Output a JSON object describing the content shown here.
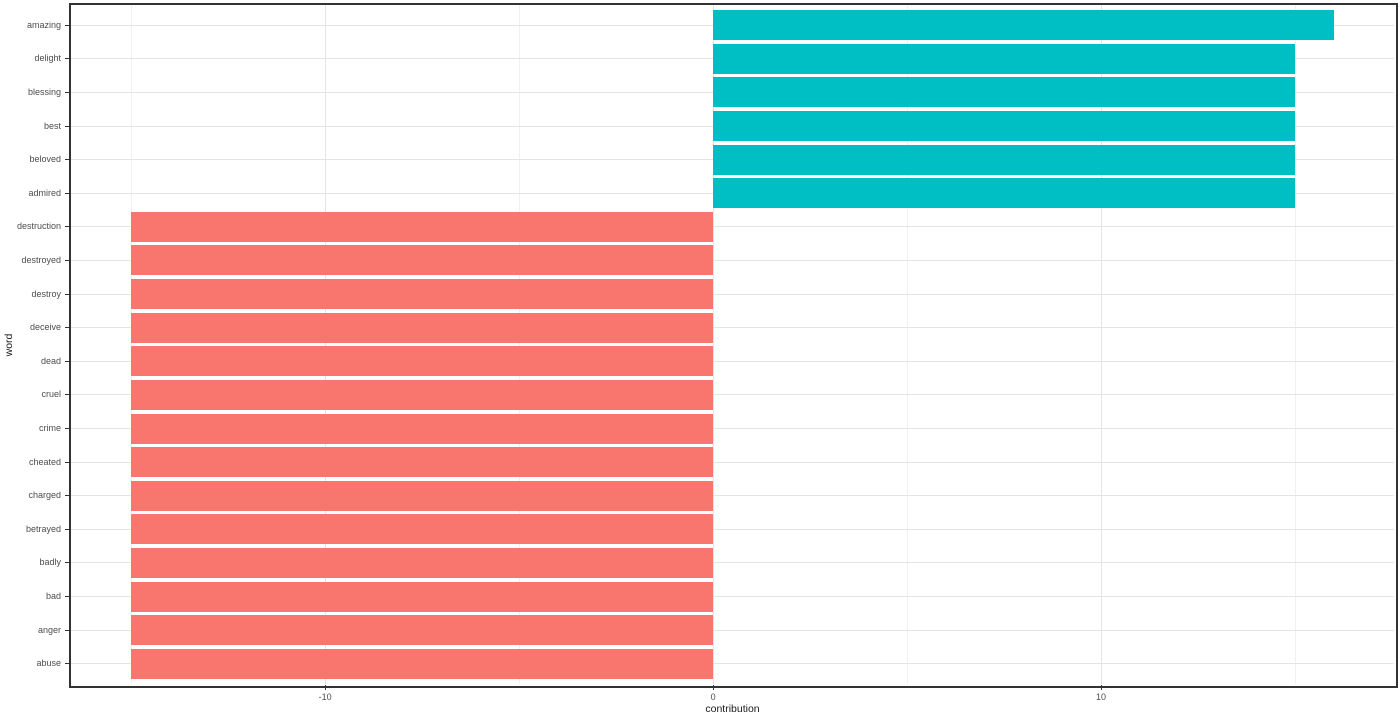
{
  "chart_data": {
    "type": "bar",
    "orientation": "horizontal",
    "title": "",
    "xlabel": "contribution",
    "ylabel": "word",
    "categories": [
      "amazing",
      "delight",
      "blessing",
      "best",
      "beloved",
      "admired",
      "destruction",
      "destroyed",
      "destroy",
      "deceive",
      "dead",
      "cruel",
      "crime",
      "cheated",
      "charged",
      "betrayed",
      "badly",
      "bad",
      "anger",
      "abuse"
    ],
    "values": [
      16,
      15,
      15,
      15,
      15,
      15,
      -15,
      -15,
      -15,
      -15,
      -15,
      -15,
      -15,
      -15,
      -15,
      -15,
      -15,
      -15,
      -15,
      -15
    ],
    "xlim": [
      -16.55,
      17.55
    ],
    "x_ticks": [
      {
        "value": -10,
        "label": "-10"
      },
      {
        "value": 0,
        "label": "0"
      },
      {
        "value": 10,
        "label": "10"
      }
    ],
    "x_minor_ticks": [
      -15,
      -5,
      5,
      15
    ],
    "grid": true,
    "legend": "none",
    "colors": {
      "positive": "#00BFC4",
      "negative": "#F8766D"
    }
  }
}
